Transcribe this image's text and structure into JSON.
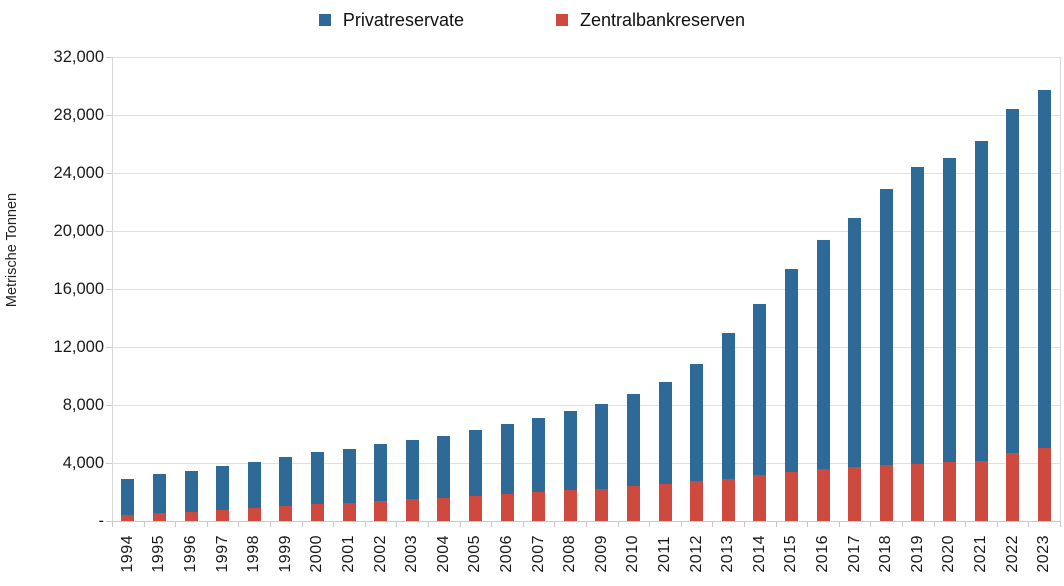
{
  "chart_data": {
    "type": "bar",
    "stacked": true,
    "title": "",
    "ylabel": "Metrische Tonnen",
    "ylim": [
      0,
      32000
    ],
    "ytick_step": 4000,
    "ytick_labels": [
      "-",
      "4,000",
      "8,000",
      "12,000",
      "16,000",
      "20,000",
      "24,000",
      "28,000",
      "32,000"
    ],
    "grid": true,
    "legend_position": "top",
    "categories": [
      "1994",
      "1995",
      "1996",
      "1997",
      "1998",
      "1999",
      "2000",
      "2001",
      "2002",
      "2003",
      "2004",
      "2005",
      "2006",
      "2007",
      "2008",
      "2009",
      "2010",
      "2011",
      "2012",
      "2013",
      "2014",
      "2015",
      "2016",
      "2017",
      "2018",
      "2019",
      "2020",
      "2021",
      "2022",
      "2023"
    ],
    "series": [
      {
        "name": "Privatreservate",
        "color": "#2d6a98",
        "values": [
          2490,
          2690,
          2820,
          2995,
          3175,
          3340,
          3540,
          3720,
          3970,
          4070,
          4270,
          4540,
          4810,
          5070,
          5500,
          5840,
          6350,
          7040,
          8040,
          10100,
          11770,
          13950,
          15740,
          17190,
          19050,
          20500,
          20940,
          22010,
          23710,
          24680
        ]
      },
      {
        "name": "Zentralbankreserven",
        "color": "#cf4a3e",
        "values": [
          400,
          540,
          650,
          775,
          885,
          1050,
          1190,
          1250,
          1360,
          1500,
          1610,
          1750,
          1890,
          2030,
          2120,
          2210,
          2400,
          2560,
          2760,
          2900,
          3180,
          3400,
          3610,
          3710,
          3850,
          3920,
          4080,
          4170,
          4720,
          5020
        ]
      }
    ],
    "stack_order_bottom_to_top": [
      "Zentralbankreserven",
      "Privatreservate"
    ],
    "totals": [
      2890,
      3230,
      3470,
      3770,
      4060,
      4390,
      4730,
      4970,
      5330,
      5570,
      5880,
      6290,
      6700,
      7100,
      7620,
      8050,
      8750,
      9600,
      10800,
      13000,
      14950,
      17350,
      19350,
      20900,
      22900,
      24420,
      25020,
      26180,
      28430,
      29700
    ]
  },
  "colors": {
    "grid": "#e0e0e0",
    "axis": "#d8d8d8",
    "tick": "#c9c9c9",
    "text": "#1a1a1a"
  }
}
